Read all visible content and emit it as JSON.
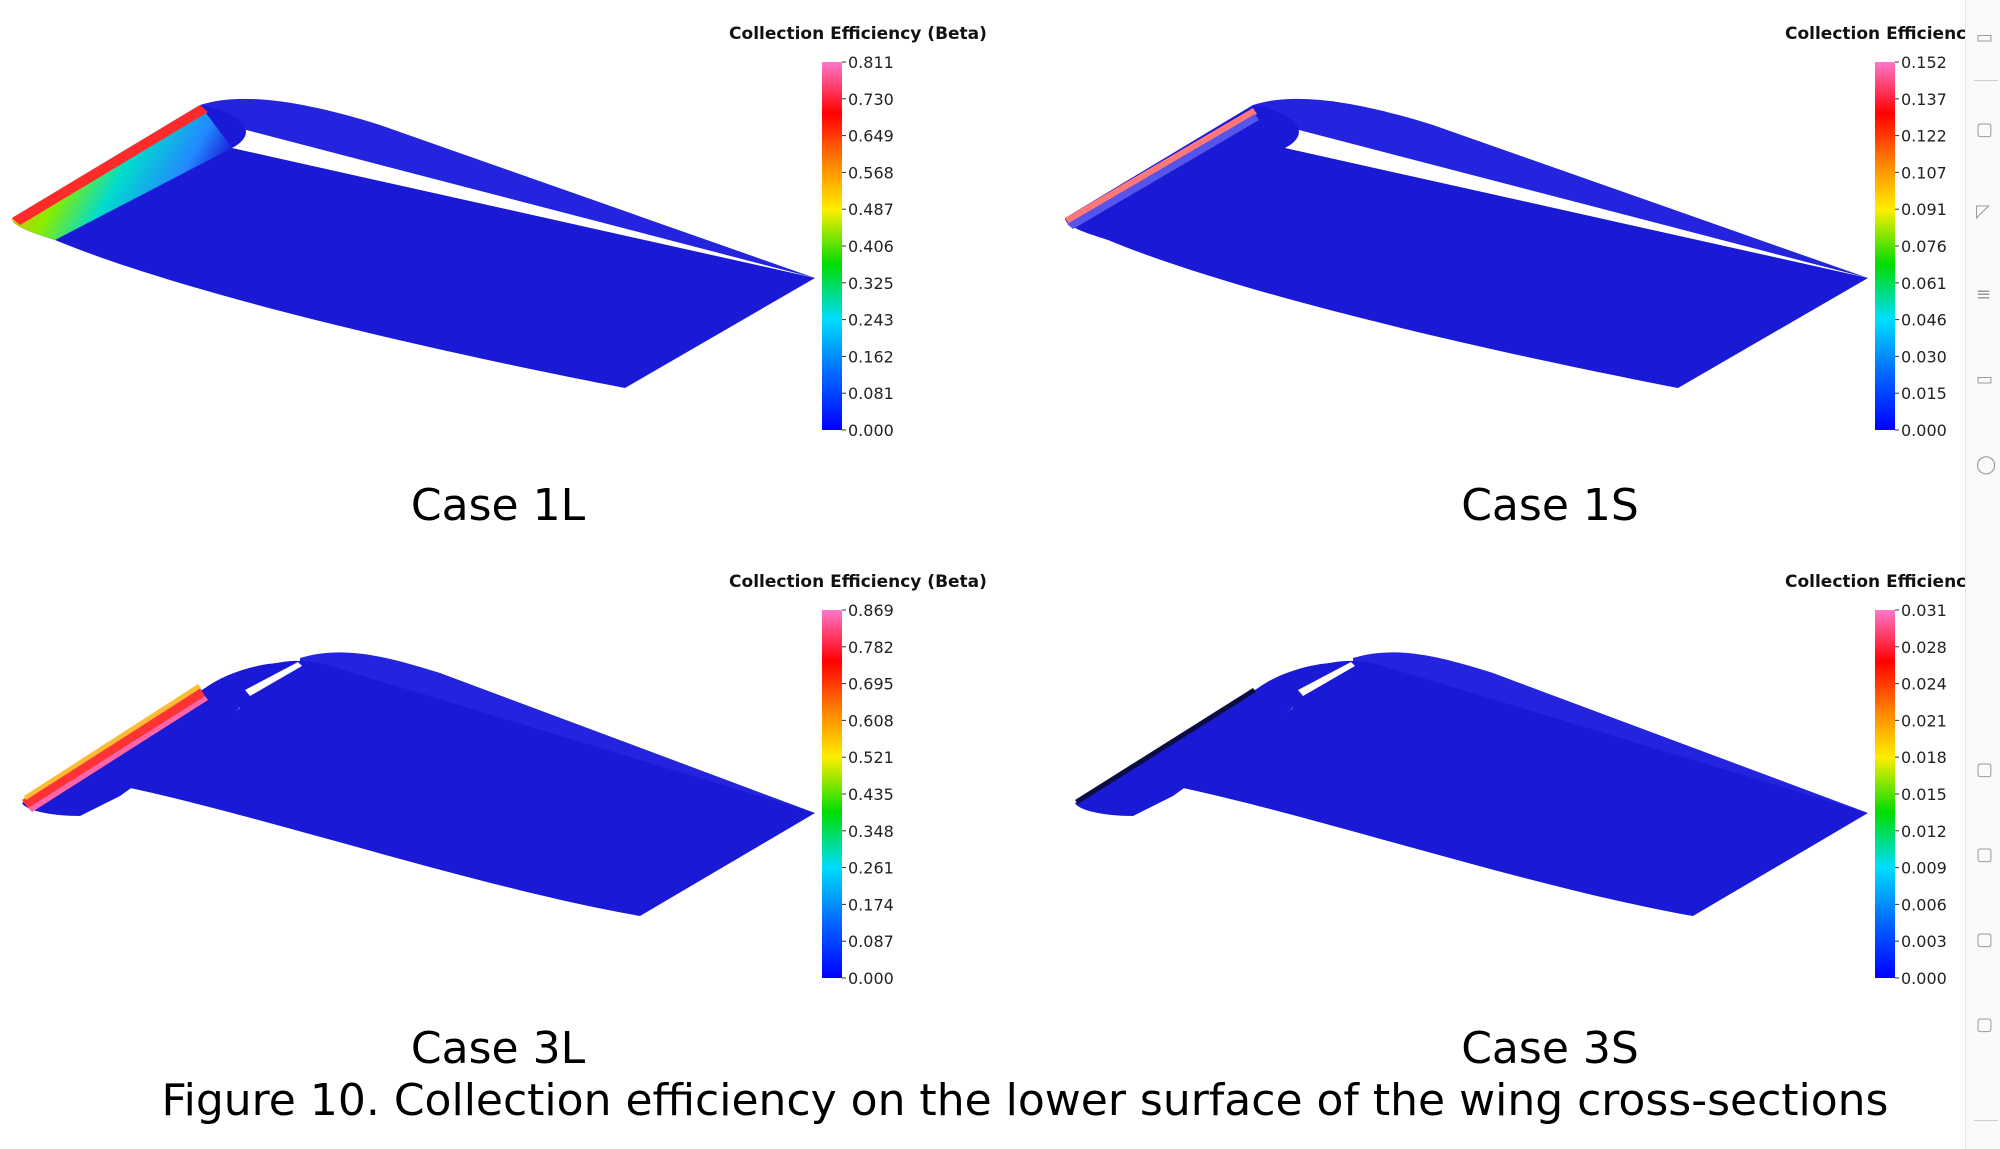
{
  "colorbar_title": "Collection Efficiency (Beta)",
  "colorbar_title_truncated": "Collection Efficienc",
  "panels": [
    {
      "id": "1L",
      "label": "Case 1L",
      "ticks": [
        "0.811",
        "0.730",
        "0.649",
        "0.568",
        "0.487",
        "0.406",
        "0.325",
        "0.243",
        "0.162",
        "0.081",
        "0.000"
      ]
    },
    {
      "id": "1S",
      "label": "Case 1S",
      "ticks": [
        "0.152",
        "0.137",
        "0.122",
        "0.107",
        "0.091",
        "0.076",
        "0.061",
        "0.046",
        "0.030",
        "0.015",
        "0.000"
      ]
    },
    {
      "id": "3L",
      "label": "Case 3L",
      "ticks": [
        "0.869",
        "0.782",
        "0.695",
        "0.608",
        "0.521",
        "0.435",
        "0.348",
        "0.261",
        "0.174",
        "0.087",
        "0.000"
      ]
    },
    {
      "id": "3S",
      "label": "Case 3S",
      "ticks": [
        "0.031",
        "0.028",
        "0.024",
        "0.021",
        "0.018",
        "0.015",
        "0.012",
        "0.009",
        "0.006",
        "0.003",
        "0.000"
      ]
    }
  ],
  "caption": "Figure 10. Collection efficiency on the lower surface of the wing cross-sections",
  "colors": {
    "wing_surface": "#1a1ad6",
    "wing_upper": "#2222dd",
    "colormap": [
      "#ff66cc",
      "#ff0000",
      "#ff8800",
      "#ffff00",
      "#00dd00",
      "#00ffff",
      "#0088ff",
      "#0000ff"
    ]
  },
  "toolbar_icons": [
    "layout-icon",
    "page-icon",
    "comment-icon",
    "list-icon",
    "layout-icon",
    "circle-icon",
    "tag-icon",
    "edit-icon",
    "bookmark-icon",
    "link-icon"
  ]
}
